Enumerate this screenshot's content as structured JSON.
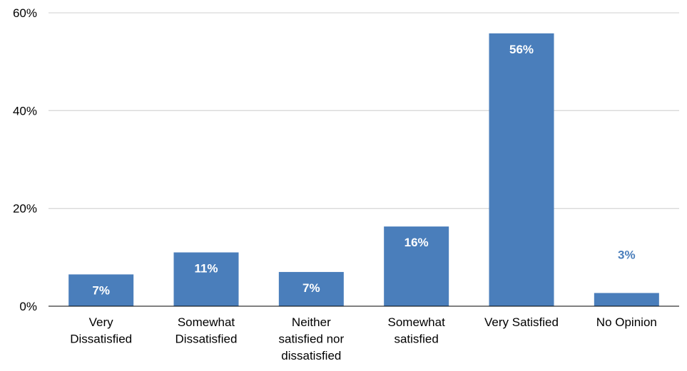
{
  "chart_data": {
    "type": "bar",
    "categories": [
      [
        "Very",
        "Dissatisfied"
      ],
      [
        "Somewhat",
        "Dissatisfied"
      ],
      [
        "Neither",
        "satisfied nor",
        "dissatisfied"
      ],
      [
        "Somewhat",
        "satisfied"
      ],
      [
        "Very Satisfied"
      ],
      [
        "No Opinion"
      ]
    ],
    "values": [
      6.5,
      11,
      7,
      16.3,
      55.8,
      2.7
    ],
    "data_labels": [
      "7%",
      "11%",
      "7%",
      "16%",
      "56%",
      "3%"
    ],
    "ylim": [
      0,
      60
    ],
    "yticks": [
      0,
      20,
      40,
      60
    ],
    "ytick_labels": [
      "0%",
      "20%",
      "40%",
      "60%"
    ],
    "title": "",
    "xlabel": "",
    "ylabel": "",
    "grid": true,
    "legend": "none",
    "colors": {
      "bar": "#4a7ebb",
      "grid": "#d9d9d9",
      "axis": "#000000",
      "label_inside": "#ffffff",
      "label_outside": "#4a7ebb"
    }
  }
}
